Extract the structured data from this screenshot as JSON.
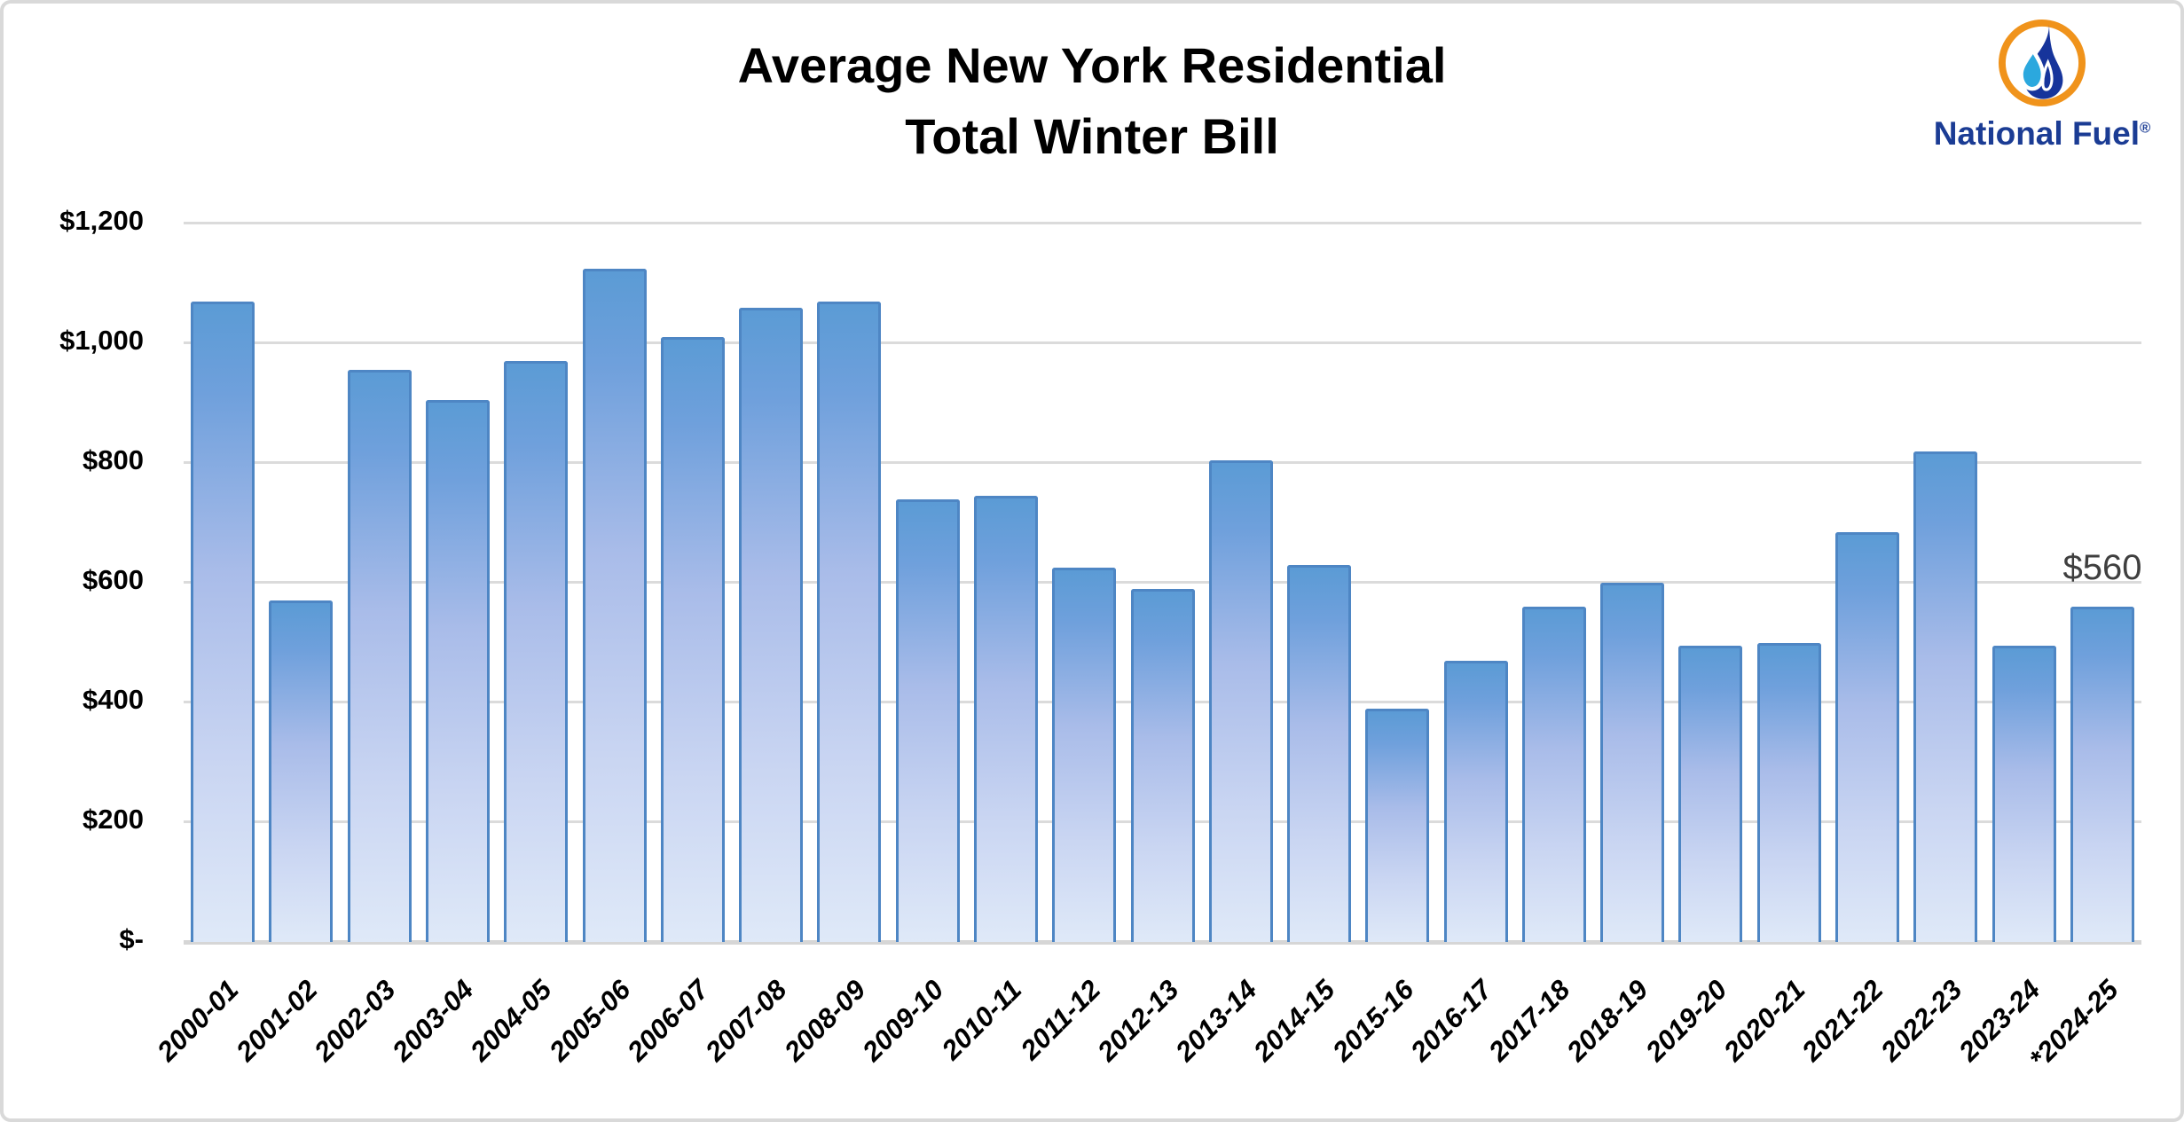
{
  "title": {
    "line1": "Average New York Residential",
    "line2": "Total Winter Bill"
  },
  "logo": {
    "name": "National Fuel",
    "registered": "®",
    "icon": "flame-drop-in-orange-ring",
    "colors": {
      "ring_orange": "#F0931B",
      "flame_navy": "#16349B",
      "drop_light_blue": "#2BA8DE",
      "wordmark_navy": "#1B3C94"
    }
  },
  "chart_data": {
    "type": "bar",
    "title": "Average New York Residential Total Winter Bill",
    "categories": [
      "2000-01",
      "2001-02",
      "2002-03",
      "2003-04",
      "2004-05",
      "2005-06",
      "2006-07",
      "2007-08",
      "2008-09",
      "2009-10",
      "2010-11",
      "2011-12",
      "2012-13",
      "2013-14",
      "2014-15",
      "2015-16",
      "2016-17",
      "2017-18",
      "2018-19",
      "2019-20",
      "2020-21",
      "2021-22",
      "2022-23",
      "2023-24",
      "*2024-25"
    ],
    "values": [
      1070,
      570,
      955,
      905,
      970,
      1125,
      1010,
      1060,
      1070,
      740,
      745,
      625,
      590,
      805,
      630,
      390,
      470,
      560,
      600,
      495,
      500,
      685,
      820,
      495,
      560
    ],
    "y_ticks": [
      "$1,200",
      "$1,000",
      "$800",
      "$600",
      "$400",
      "$200",
      "$-"
    ],
    "ylim": [
      0,
      1200
    ],
    "y_step": 200,
    "grid": true,
    "legend": "none",
    "annotation": {
      "text": "$560",
      "category": "*2024-25"
    },
    "bar_colors": {
      "border": "#4E86C4",
      "gradient_top": "#5B9BD5",
      "gradient_bottom": "#DFE9F8"
    },
    "gridline_color": "#D9D9D9"
  }
}
